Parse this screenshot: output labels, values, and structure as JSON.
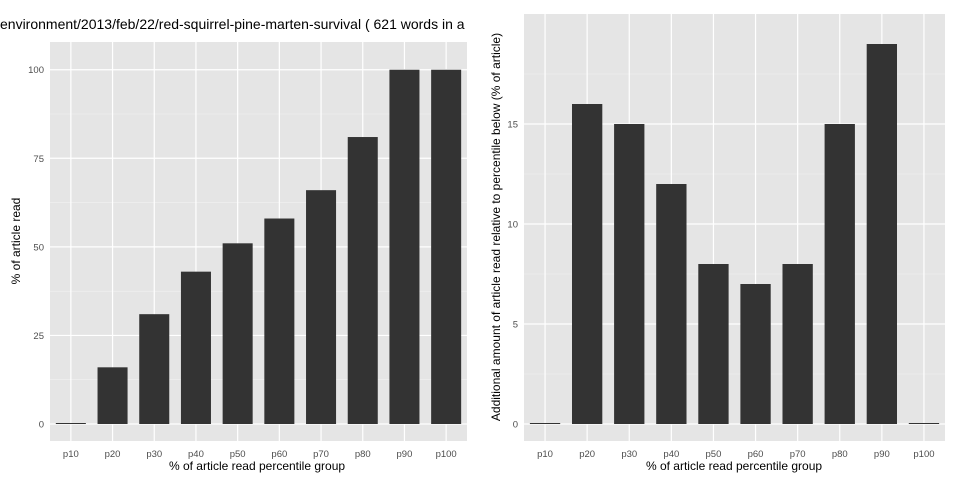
{
  "chart_data": [
    {
      "type": "bar",
      "title": "environment/2013/feb/22/red-squirrel-pine-marten-survival ( 621 words in a",
      "xlabel": "% of article read percentile group",
      "ylabel": "% of article read",
      "categories": [
        "p10",
        "p20",
        "p30",
        "p40",
        "p50",
        "p60",
        "p70",
        "p80",
        "p90",
        "p100"
      ],
      "values": [
        0,
        16,
        31,
        43,
        51,
        58,
        66,
        81,
        100,
        100
      ],
      "ylim": [
        0,
        105
      ],
      "yticks": [
        0,
        25,
        50,
        75,
        100
      ],
      "grid": true,
      "colors": {
        "bar": "#333333",
        "panel": "#e5e5e5",
        "grid_major": "#ffffff",
        "grid_minor": "#f2f2f2"
      }
    },
    {
      "type": "bar",
      "title": "",
      "xlabel": "% of article read percentile group",
      "ylabel": "Additional amount of article read relative to percentile below (% of article)",
      "categories": [
        "p10",
        "p20",
        "p30",
        "p40",
        "p50",
        "p60",
        "p70",
        "p80",
        "p90",
        "p100"
      ],
      "values": [
        0,
        16,
        15,
        12,
        8,
        7,
        8,
        15,
        19,
        0
      ],
      "ylim": [
        0,
        20
      ],
      "yticks": [
        0,
        5,
        10,
        15
      ],
      "grid": true,
      "colors": {
        "bar": "#333333",
        "panel": "#e5e5e5",
        "grid_major": "#ffffff",
        "grid_minor": "#f2f2f2"
      }
    }
  ]
}
